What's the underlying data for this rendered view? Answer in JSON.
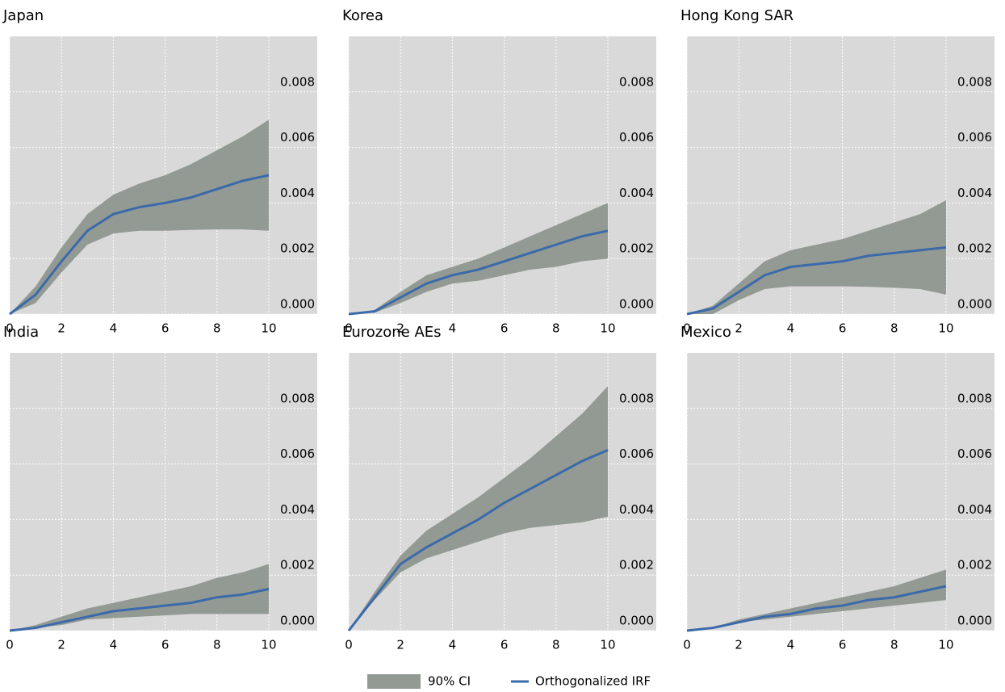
{
  "legend": [
    {
      "name": "90% CI",
      "color": "#939a93"
    },
    {
      "name": "Orthogonalized IRF",
      "color": "#3b6aaa"
    }
  ],
  "chart_data": [
    {
      "type": "line",
      "title": "Japan",
      "x": [
        0,
        1,
        2,
        3,
        4,
        5,
        6,
        7,
        8,
        9,
        10
      ],
      "values": [
        0,
        0.0007,
        0.0019,
        0.003,
        0.0036,
        0.00385,
        0.004,
        0.0042,
        0.0045,
        0.0048,
        0.005
      ],
      "upper": [
        0,
        0.001,
        0.0024,
        0.0036,
        0.0043,
        0.0047,
        0.005,
        0.0054,
        0.0059,
        0.0064,
        0.007
      ],
      "lower": [
        0,
        0.0004,
        0.0015,
        0.0025,
        0.0029,
        0.003,
        0.003,
        0.00303,
        0.00305,
        0.00305,
        0.003
      ],
      "xlim": [
        0,
        11.87
      ],
      "xticks": [
        0,
        2,
        4,
        6,
        8,
        10
      ],
      "ylim": [
        0,
        0.01
      ],
      "yticks": [
        {
          "value": 0,
          "label": "0.000"
        },
        0.002,
        0.004,
        0.006,
        0.008
      ],
      "grid": true
    },
    {
      "type": "line",
      "title": "Korea",
      "x": [
        0,
        1,
        2,
        3,
        4,
        5,
        6,
        7,
        8,
        9,
        10
      ],
      "values": [
        0,
        0.0001,
        0.0006,
        0.0011,
        0.0014,
        0.0016,
        0.0019,
        0.0022,
        0.0025,
        0.0028,
        0.003
      ],
      "upper": [
        0,
        0.00015,
        0.0008,
        0.0014,
        0.0017,
        0.002,
        0.0024,
        0.0028,
        0.0032,
        0.0036,
        0.004
      ],
      "lower": [
        0,
        5e-05,
        0.0004,
        0.0008,
        0.0011,
        0.0012,
        0.0014,
        0.0016,
        0.0017,
        0.0019,
        0.002
      ],
      "xlim": [
        0,
        11.87
      ],
      "xticks": [
        0,
        2,
        4,
        6,
        8,
        10
      ],
      "ylim": [
        0,
        0.01
      ],
      "yticks": [
        {
          "value": 0,
          "label": "0.000"
        },
        0.002,
        0.004,
        0.006,
        0.008
      ],
      "grid": true
    },
    {
      "type": "line",
      "title": "Hong Kong SAR",
      "x": [
        0,
        1,
        2,
        3,
        4,
        5,
        6,
        7,
        8,
        9,
        10
      ],
      "values": [
        0,
        0.0002,
        0.0008,
        0.0014,
        0.0017,
        0.0018,
        0.0019,
        0.0021,
        0.0022,
        0.0023,
        0.0024
      ],
      "upper": [
        0,
        0.0003,
        0.0011,
        0.0019,
        0.0023,
        0.0025,
        0.0027,
        0.003,
        0.0033,
        0.0036,
        0.0041
      ],
      "lower": [
        0,
        0,
        0.0005,
        0.0009,
        0.001,
        0.001,
        0.001,
        0.00098,
        0.00095,
        0.0009,
        0.0007
      ],
      "xlim": [
        0,
        11.87
      ],
      "xticks": [
        0,
        2,
        4,
        6,
        8,
        10
      ],
      "ylim": [
        0,
        0.01
      ],
      "yticks": [
        {
          "value": 0,
          "label": "0.000"
        },
        0.002,
        0.004,
        0.006,
        0.008
      ],
      "grid": true
    },
    {
      "type": "line",
      "title": "India",
      "x": [
        0,
        1,
        2,
        3,
        4,
        5,
        6,
        7,
        8,
        9,
        10
      ],
      "values": [
        0,
        0.0001,
        0.0003,
        0.0005,
        0.0007,
        0.0008,
        0.0009,
        0.001,
        0.0012,
        0.0013,
        0.0015
      ],
      "upper": [
        0,
        0.0002,
        0.0005,
        0.0008,
        0.001,
        0.0012,
        0.0014,
        0.0016,
        0.0019,
        0.0021,
        0.0024
      ],
      "lower": [
        0,
        0.0001,
        0.0002,
        0.0004,
        0.00045,
        0.0005,
        0.00055,
        0.0006,
        0.0006,
        0.0006,
        0.0006
      ],
      "xlim": [
        0,
        11.87
      ],
      "xticks": [
        0,
        2,
        4,
        6,
        8,
        10
      ],
      "ylim": [
        0,
        0.01
      ],
      "yticks": [
        {
          "value": 0,
          "label": "0.000"
        },
        0.002,
        0.004,
        0.006,
        0.008
      ],
      "grid": true
    },
    {
      "type": "line",
      "title": "Eurozone AEs",
      "x": [
        0,
        1,
        2,
        3,
        4,
        5,
        6,
        7,
        8,
        9,
        10
      ],
      "values": [
        0,
        0.0012,
        0.0024,
        0.003,
        0.0035,
        0.004,
        0.0046,
        0.0051,
        0.0056,
        0.0061,
        0.0065
      ],
      "upper": [
        0,
        0.0014,
        0.0027,
        0.0036,
        0.0042,
        0.0048,
        0.0055,
        0.0062,
        0.007,
        0.0078,
        0.0088
      ],
      "lower": [
        0,
        0.0011,
        0.0021,
        0.0026,
        0.0029,
        0.0032,
        0.0035,
        0.0037,
        0.0038,
        0.0039,
        0.0041
      ],
      "xlim": [
        0,
        11.87
      ],
      "xticks": [
        0,
        2,
        4,
        6,
        8,
        10
      ],
      "ylim": [
        0,
        0.01
      ],
      "yticks": [
        {
          "value": 0,
          "label": "0.000"
        },
        0.002,
        0.004,
        0.006,
        0.008
      ],
      "grid": true
    },
    {
      "type": "line",
      "title": "Mexico",
      "x": [
        0,
        1,
        2,
        3,
        4,
        5,
        6,
        7,
        8,
        9,
        10
      ],
      "values": [
        0,
        0.0001,
        0.0003,
        0.0005,
        0.0006,
        0.0008,
        0.0009,
        0.0011,
        0.0012,
        0.0014,
        0.0016
      ],
      "upper": [
        0,
        0.0001,
        0.0004,
        0.0006,
        0.0008,
        0.001,
        0.0012,
        0.0014,
        0.0016,
        0.0019,
        0.0022
      ],
      "lower": [
        0,
        0.0001,
        0.0003,
        0.0004,
        0.0005,
        0.0006,
        0.0007,
        0.0008,
        0.0009,
        0.001,
        0.0011
      ],
      "xlim": [
        0,
        11.87
      ],
      "xticks": [
        0,
        2,
        4,
        6,
        8,
        10
      ],
      "ylim": [
        0,
        0.01
      ],
      "yticks": [
        {
          "value": 0,
          "label": "0.000"
        },
        0.002,
        0.004,
        0.006,
        0.008
      ],
      "grid": true
    }
  ]
}
